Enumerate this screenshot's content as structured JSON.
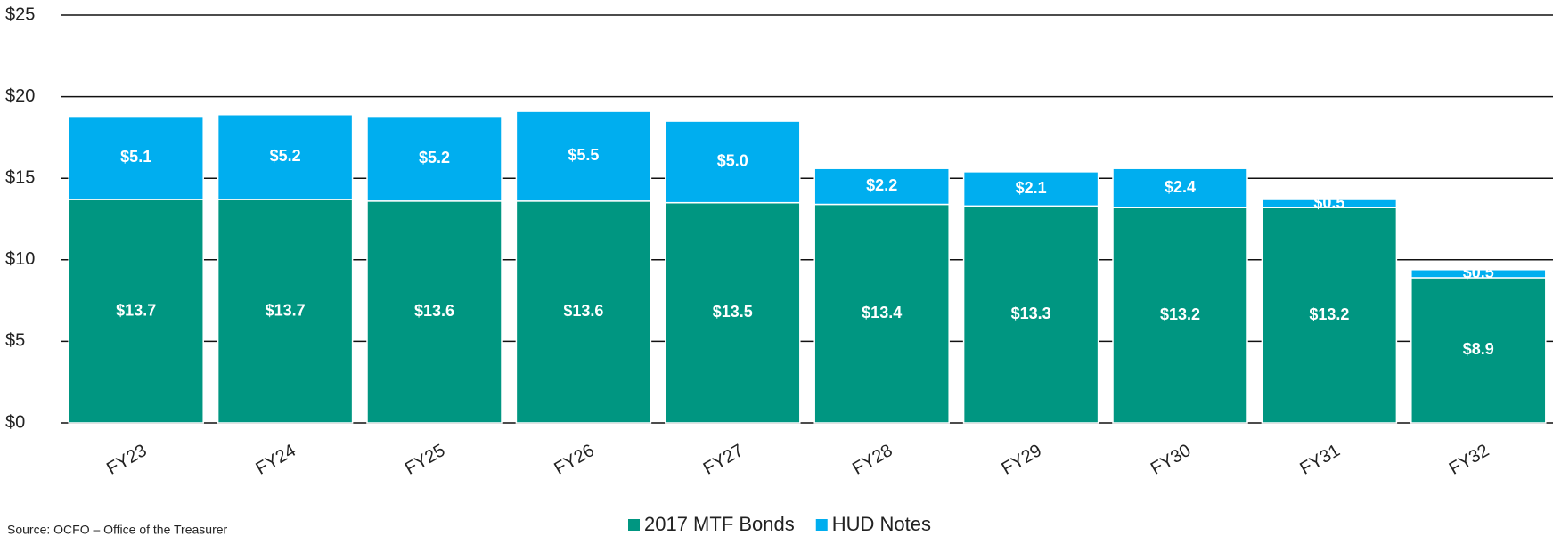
{
  "chart_data": {
    "type": "stacked_bar",
    "categories": [
      "FY23",
      "FY24",
      "FY25",
      "FY26",
      "FY27",
      "FY28",
      "FY29",
      "FY30",
      "FY31",
      "FY32"
    ],
    "series": [
      {
        "name": "2017 MTF Bonds",
        "color": "#009681",
        "values": [
          13.7,
          13.7,
          13.6,
          13.6,
          13.5,
          13.4,
          13.3,
          13.2,
          13.2,
          8.9
        ],
        "value_labels": [
          "$13.7",
          "$13.7",
          "$13.6",
          "$13.6",
          "$13.5",
          "$13.4",
          "$13.3",
          "$13.2",
          "$13.2",
          "$8.9"
        ]
      },
      {
        "name": "HUD Notes",
        "color": "#00aeef",
        "values": [
          5.1,
          5.2,
          5.2,
          5.5,
          5.0,
          2.2,
          2.1,
          2.4,
          0.5,
          0.5
        ],
        "value_labels": [
          "$5.1",
          "$5.2",
          "$5.2",
          "$5.5",
          "$5.0",
          "$2.2",
          "$2.1",
          "$2.4",
          "$0.5",
          "$0.5"
        ]
      }
    ],
    "ylim": [
      0,
      25
    ],
    "yticks": [
      {
        "value": 0,
        "label": "$0"
      },
      {
        "value": 5,
        "label": "$5"
      },
      {
        "value": 10,
        "label": "$10"
      },
      {
        "value": 15,
        "label": "$15"
      },
      {
        "value": 20,
        "label": "$20"
      },
      {
        "value": 25,
        "label": "$25"
      }
    ],
    "grid": true,
    "legend": "bottom",
    "source": "Source: OCFO – Office of the Treasurer"
  }
}
